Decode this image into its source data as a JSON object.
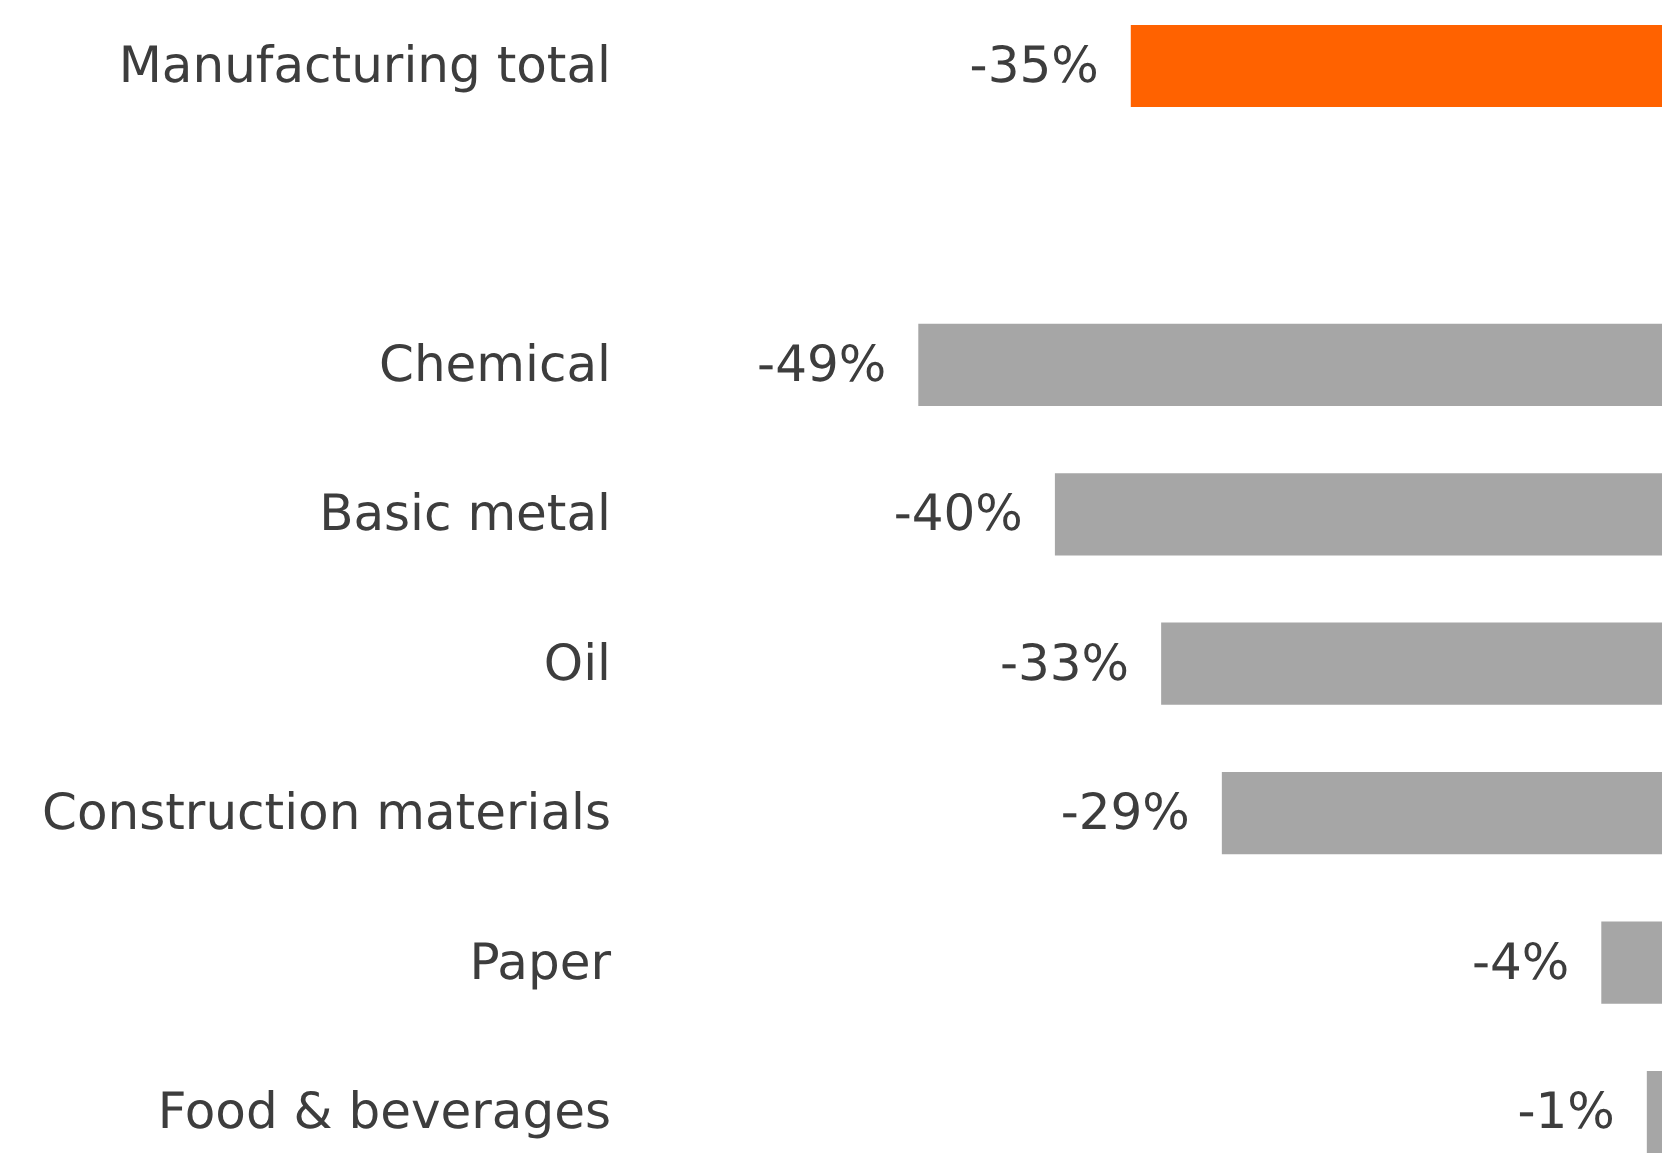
{
  "chart_data": {
    "type": "bar",
    "orientation": "horizontal",
    "categories": [
      "Manufacturing total",
      null,
      "Chemical",
      "Basic metal",
      "Oil",
      "Construction materials",
      "Paper",
      "Food & beverages"
    ],
    "values": [
      -35,
      null,
      -49,
      -40,
      -33,
      -29,
      -4,
      -1
    ],
    "colors": [
      "#ff6200",
      null,
      "#a6a6a6",
      "#a6a6a6",
      "#a6a6a6",
      "#a6a6a6",
      "#a6a6a6",
      "#a6a6a6"
    ],
    "value_labels": [
      "-35%",
      null,
      "-49%",
      "-40%",
      "-33%",
      "-29%",
      "-4%",
      "-1%"
    ]
  }
}
